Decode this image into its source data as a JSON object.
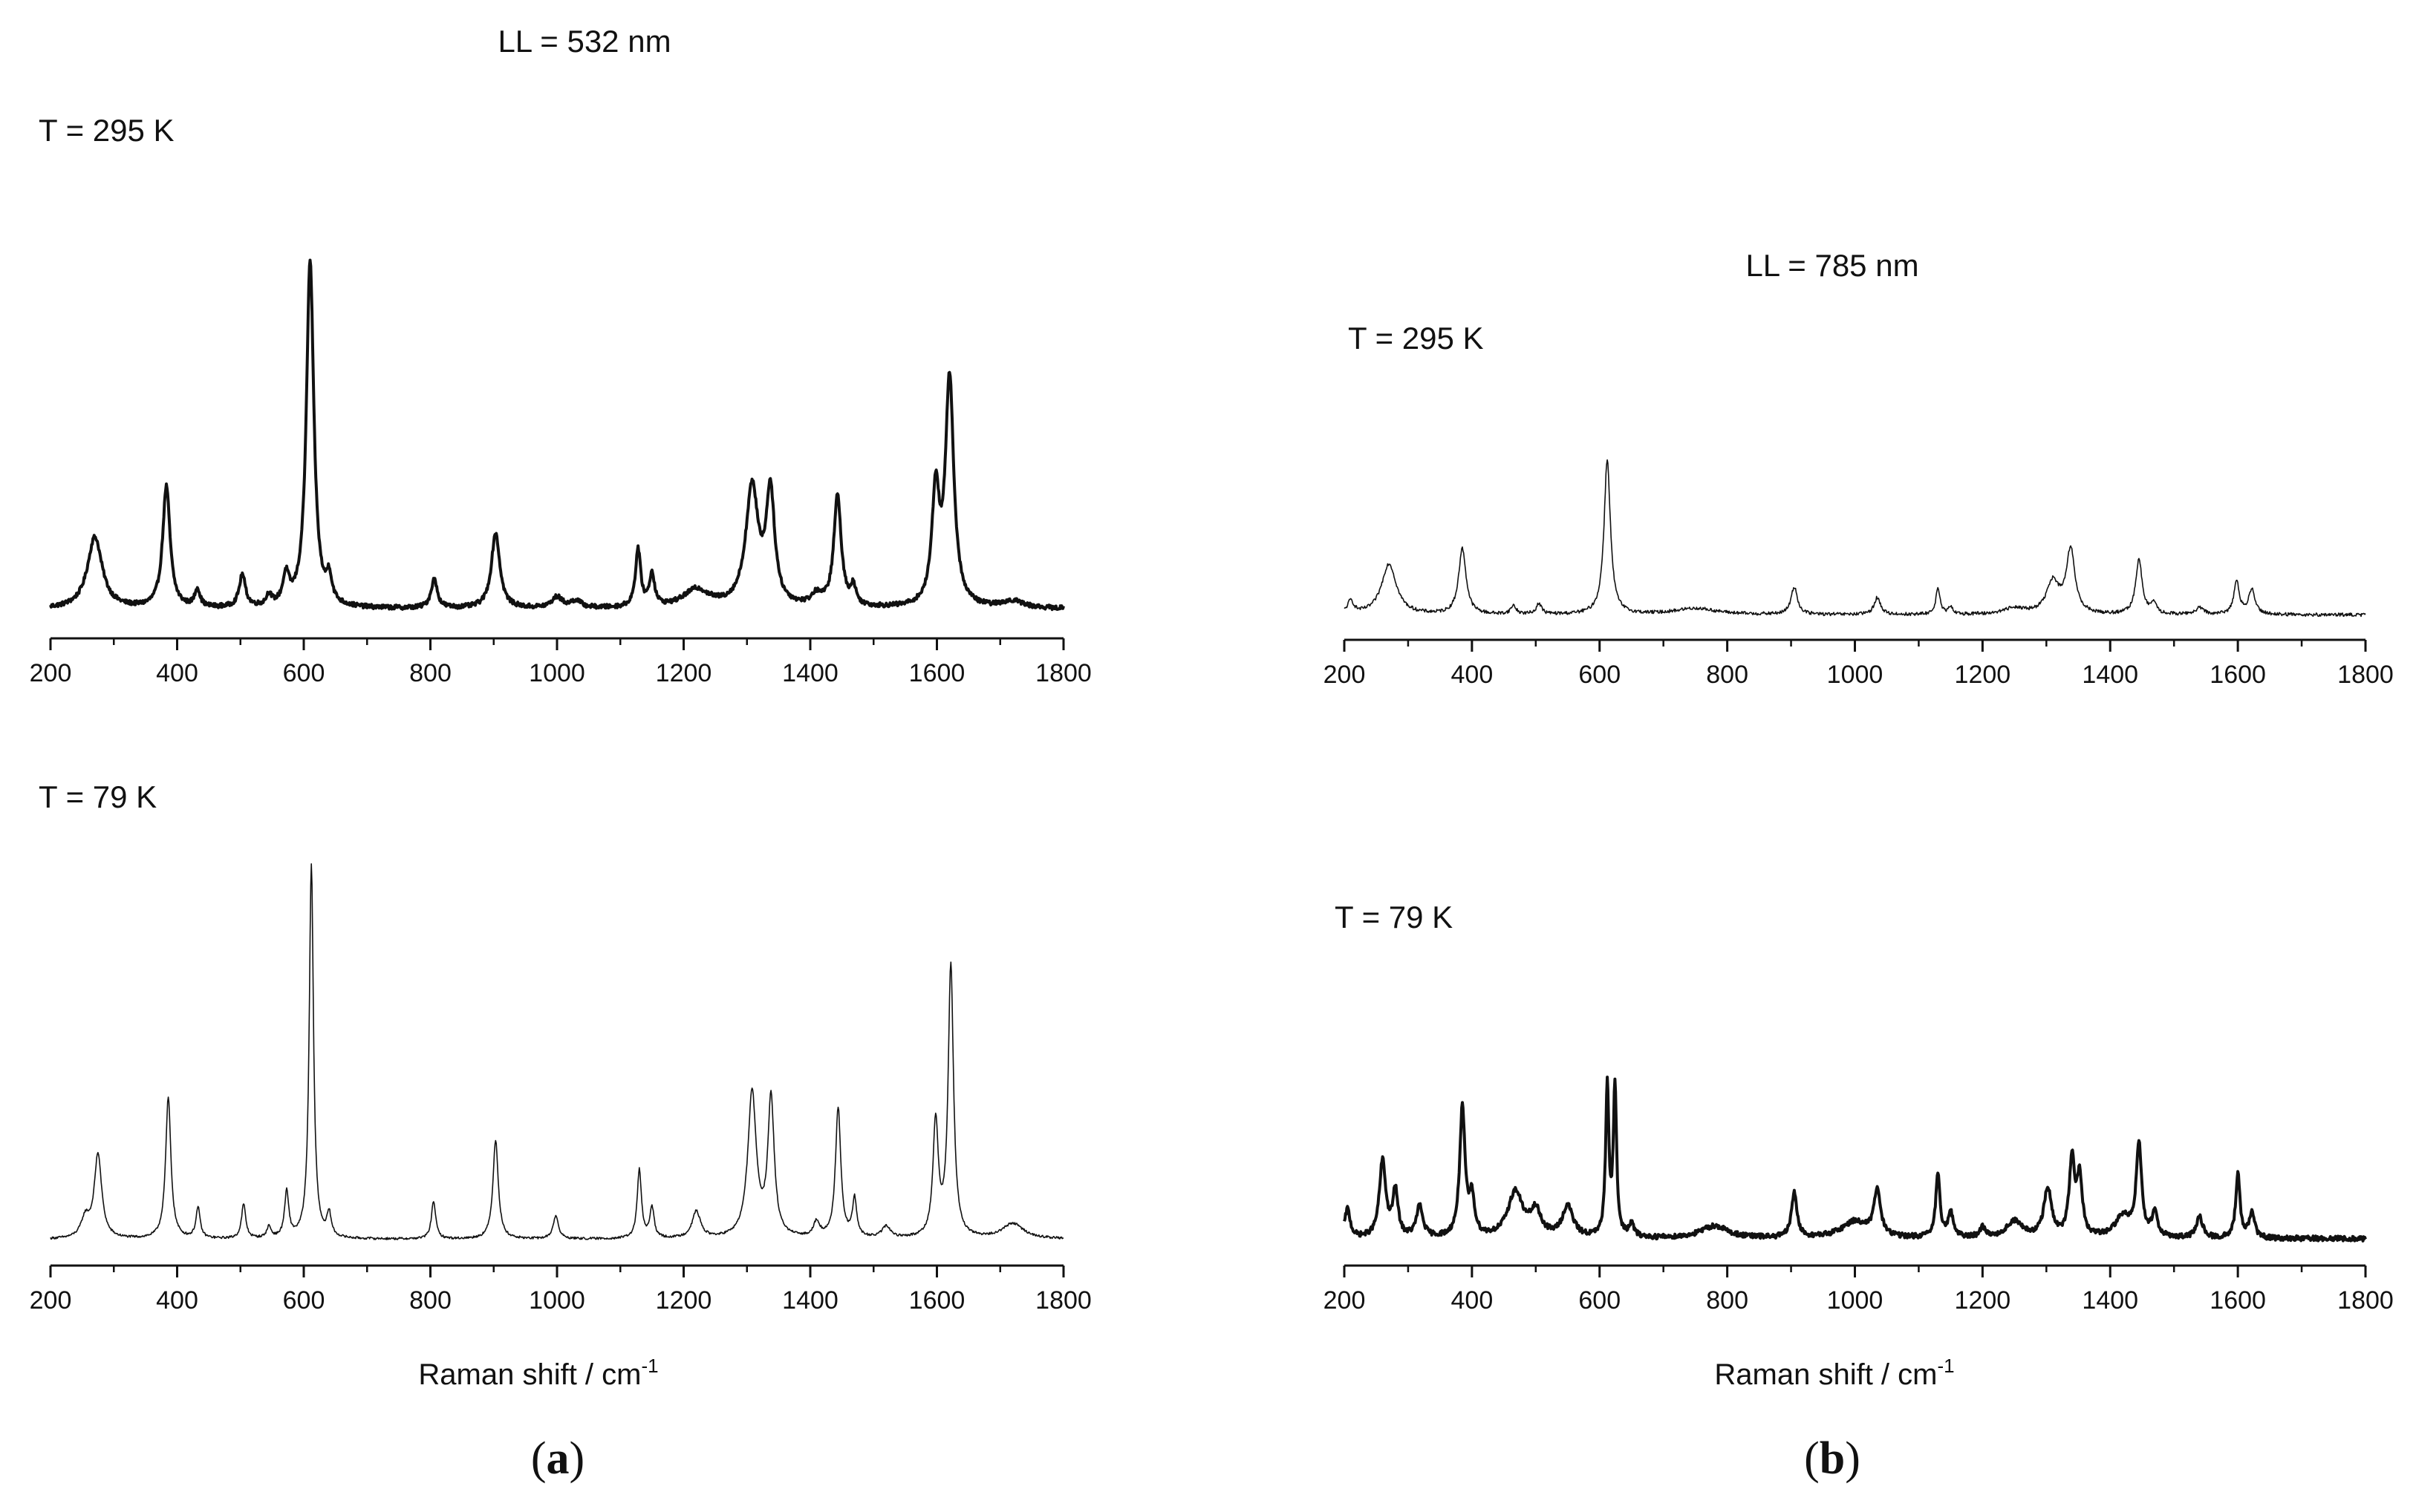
{
  "figure": {
    "panel_a": {
      "letter_open": "(",
      "letter": "a",
      "letter_close": ")",
      "title": "LL = 532 nm"
    },
    "panel_b": {
      "letter_open": "(",
      "letter": "b",
      "letter_close": ")",
      "title": "LL = 785 nm"
    },
    "axis_title_main": "Raman shift / cm",
    "axis_title_sup": "-1"
  },
  "colors": {
    "line": "#111111",
    "axis": "#111111",
    "background": "#ffffff"
  },
  "chart_data": [
    {
      "id": "a_top",
      "type": "line",
      "panel": "a",
      "label": "T = 295 K",
      "xlabel": "",
      "ylabel": "",
      "xlim": [
        200,
        1800
      ],
      "xticks": [
        200,
        400,
        600,
        800,
        1000,
        1200,
        1400,
        1600,
        1800
      ],
      "yticks_visible": false,
      "line_weight": "bold",
      "baseline": 0.03,
      "noise": 0.006,
      "peaks": [
        {
          "pos": 270,
          "height": 0.2,
          "width": 14
        },
        {
          "pos": 383,
          "height": 0.34,
          "width": 7
        },
        {
          "pos": 432,
          "height": 0.05,
          "width": 5
        },
        {
          "pos": 503,
          "height": 0.09,
          "width": 6
        },
        {
          "pos": 545,
          "height": 0.03,
          "width": 5
        },
        {
          "pos": 572,
          "height": 0.08,
          "width": 6
        },
        {
          "pos": 610,
          "height": 0.97,
          "width": 7
        },
        {
          "pos": 640,
          "height": 0.07,
          "width": 5
        },
        {
          "pos": 806,
          "height": 0.08,
          "width": 6
        },
        {
          "pos": 903,
          "height": 0.21,
          "width": 8
        },
        {
          "pos": 1000,
          "height": 0.03,
          "width": 10
        },
        {
          "pos": 1030,
          "height": 0.02,
          "width": 10
        },
        {
          "pos": 1128,
          "height": 0.16,
          "width": 5
        },
        {
          "pos": 1150,
          "height": 0.09,
          "width": 5
        },
        {
          "pos": 1220,
          "height": 0.05,
          "width": 25
        },
        {
          "pos": 1308,
          "height": 0.33,
          "width": 12
        },
        {
          "pos": 1337,
          "height": 0.31,
          "width": 8
        },
        {
          "pos": 1410,
          "height": 0.03,
          "width": 10
        },
        {
          "pos": 1443,
          "height": 0.31,
          "width": 7
        },
        {
          "pos": 1468,
          "height": 0.05,
          "width": 5
        },
        {
          "pos": 1598,
          "height": 0.31,
          "width": 7
        },
        {
          "pos": 1620,
          "height": 0.63,
          "width": 8
        },
        {
          "pos": 1720,
          "height": 0.02,
          "width": 20
        }
      ]
    },
    {
      "id": "a_bottom",
      "type": "line",
      "panel": "a",
      "label": "T = 79 K",
      "xlabel": "Raman shift / cm-1",
      "ylabel": "",
      "xlim": [
        200,
        1800
      ],
      "xticks": [
        200,
        400,
        600,
        800,
        1000,
        1200,
        1400,
        1600,
        1800
      ],
      "yticks_visible": false,
      "line_weight": "thin",
      "baseline": 0.02,
      "noise": 0.003,
      "peaks": [
        {
          "pos": 255,
          "height": 0.05,
          "width": 8
        },
        {
          "pos": 275,
          "height": 0.22,
          "width": 7
        },
        {
          "pos": 386,
          "height": 0.37,
          "width": 5
        },
        {
          "pos": 433,
          "height": 0.08,
          "width": 4
        },
        {
          "pos": 505,
          "height": 0.09,
          "width": 4
        },
        {
          "pos": 545,
          "height": 0.03,
          "width": 4
        },
        {
          "pos": 573,
          "height": 0.12,
          "width": 4
        },
        {
          "pos": 612,
          "height": 0.98,
          "width": 4
        },
        {
          "pos": 640,
          "height": 0.06,
          "width": 4
        },
        {
          "pos": 805,
          "height": 0.1,
          "width": 4
        },
        {
          "pos": 903,
          "height": 0.26,
          "width": 5
        },
        {
          "pos": 998,
          "height": 0.06,
          "width": 5
        },
        {
          "pos": 1130,
          "height": 0.18,
          "width": 4
        },
        {
          "pos": 1150,
          "height": 0.08,
          "width": 4
        },
        {
          "pos": 1220,
          "height": 0.07,
          "width": 8
        },
        {
          "pos": 1308,
          "height": 0.38,
          "width": 8
        },
        {
          "pos": 1338,
          "height": 0.36,
          "width": 6
        },
        {
          "pos": 1410,
          "height": 0.04,
          "width": 6
        },
        {
          "pos": 1444,
          "height": 0.34,
          "width": 5
        },
        {
          "pos": 1470,
          "height": 0.1,
          "width": 4
        },
        {
          "pos": 1520,
          "height": 0.03,
          "width": 8
        },
        {
          "pos": 1598,
          "height": 0.3,
          "width": 5
        },
        {
          "pos": 1622,
          "height": 0.71,
          "width": 5
        },
        {
          "pos": 1720,
          "height": 0.04,
          "width": 20
        }
      ]
    },
    {
      "id": "b_top",
      "type": "line",
      "panel": "b",
      "label": "T = 295 K",
      "xlabel": "",
      "ylabel": "",
      "xlim": [
        200,
        1800
      ],
      "xticks": [
        200,
        400,
        600,
        800,
        1000,
        1200,
        1400,
        1600,
        1800
      ],
      "yticks_visible": false,
      "line_weight": "thin",
      "baseline": 0.03,
      "noise": 0.008,
      "peaks": [
        {
          "pos": 210,
          "height": 0.06,
          "width": 6
        },
        {
          "pos": 270,
          "height": 0.24,
          "width": 14
        },
        {
          "pos": 385,
          "height": 0.31,
          "width": 7
        },
        {
          "pos": 465,
          "height": 0.04,
          "width": 5
        },
        {
          "pos": 505,
          "height": 0.05,
          "width": 5
        },
        {
          "pos": 612,
          "height": 0.73,
          "width": 6
        },
        {
          "pos": 750,
          "height": 0.03,
          "width": 40
        },
        {
          "pos": 905,
          "height": 0.13,
          "width": 6
        },
        {
          "pos": 1035,
          "height": 0.08,
          "width": 6
        },
        {
          "pos": 1130,
          "height": 0.12,
          "width": 4
        },
        {
          "pos": 1150,
          "height": 0.03,
          "width": 5
        },
        {
          "pos": 1250,
          "height": 0.03,
          "width": 20
        },
        {
          "pos": 1310,
          "height": 0.15,
          "width": 12
        },
        {
          "pos": 1338,
          "height": 0.3,
          "width": 8
        },
        {
          "pos": 1445,
          "height": 0.26,
          "width": 6
        },
        {
          "pos": 1468,
          "height": 0.05,
          "width": 5
        },
        {
          "pos": 1540,
          "height": 0.03,
          "width": 8
        },
        {
          "pos": 1598,
          "height": 0.16,
          "width": 5
        },
        {
          "pos": 1622,
          "height": 0.12,
          "width": 6
        }
      ]
    },
    {
      "id": "b_bottom",
      "type": "line",
      "panel": "b",
      "label": "T = 79 K",
      "xlabel": "Raman shift / cm-1",
      "ylabel": "",
      "xlim": [
        200,
        1800
      ],
      "xticks": [
        200,
        400,
        600,
        800,
        1000,
        1200,
        1400,
        1600,
        1800
      ],
      "yticks_visible": false,
      "line_weight": "bold",
      "baseline": 0.04,
      "noise": 0.012,
      "peaks": [
        {
          "pos": 205,
          "height": 0.14,
          "width": 5
        },
        {
          "pos": 260,
          "height": 0.37,
          "width": 6
        },
        {
          "pos": 280,
          "height": 0.22,
          "width": 5
        },
        {
          "pos": 318,
          "height": 0.15,
          "width": 6
        },
        {
          "pos": 385,
          "height": 0.62,
          "width": 5
        },
        {
          "pos": 400,
          "height": 0.18,
          "width": 5
        },
        {
          "pos": 468,
          "height": 0.22,
          "width": 14
        },
        {
          "pos": 500,
          "height": 0.12,
          "width": 10
        },
        {
          "pos": 550,
          "height": 0.15,
          "width": 10
        },
        {
          "pos": 612,
          "height": 0.73,
          "width": 3
        },
        {
          "pos": 624,
          "height": 0.73,
          "width": 3
        },
        {
          "pos": 650,
          "height": 0.06,
          "width": 5
        },
        {
          "pos": 780,
          "height": 0.06,
          "width": 25
        },
        {
          "pos": 905,
          "height": 0.22,
          "width": 5
        },
        {
          "pos": 1000,
          "height": 0.08,
          "width": 25
        },
        {
          "pos": 1035,
          "height": 0.22,
          "width": 6
        },
        {
          "pos": 1130,
          "height": 0.3,
          "width": 4
        },
        {
          "pos": 1150,
          "height": 0.12,
          "width": 5
        },
        {
          "pos": 1200,
          "height": 0.05,
          "width": 5
        },
        {
          "pos": 1250,
          "height": 0.08,
          "width": 15
        },
        {
          "pos": 1302,
          "height": 0.24,
          "width": 7
        },
        {
          "pos": 1340,
          "height": 0.37,
          "width": 5
        },
        {
          "pos": 1352,
          "height": 0.28,
          "width": 5
        },
        {
          "pos": 1420,
          "height": 0.1,
          "width": 15
        },
        {
          "pos": 1445,
          "height": 0.45,
          "width": 5
        },
        {
          "pos": 1470,
          "height": 0.12,
          "width": 5
        },
        {
          "pos": 1540,
          "height": 0.1,
          "width": 6
        },
        {
          "pos": 1600,
          "height": 0.31,
          "width": 4
        },
        {
          "pos": 1622,
          "height": 0.12,
          "width": 5
        }
      ]
    }
  ]
}
